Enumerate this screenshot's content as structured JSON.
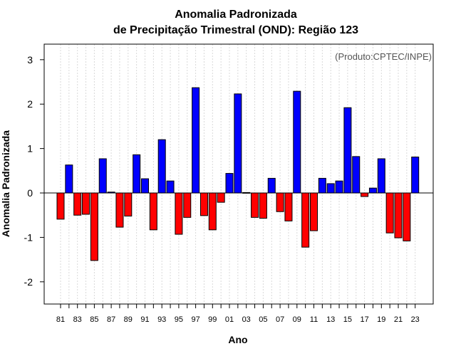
{
  "chart_data": {
    "type": "bar",
    "title_line1": "Anomalia Padronizada",
    "title_line2": "de Precipitação Trimestral (OND): Região 123",
    "xlabel": "Ano",
    "ylabel": "Anomalia Padronizada",
    "annotation": "(Produto:CPTEC/INPE)",
    "ylim": [
      -2.5,
      3.35
    ],
    "yticks": [
      "-2",
      "-1",
      "0",
      "1",
      "2",
      "3"
    ],
    "positive_color": "#0000ff",
    "negative_color": "#ff0000",
    "categories": [
      "81",
      "82",
      "83",
      "84",
      "85",
      "86",
      "87",
      "88",
      "89",
      "90",
      "91",
      "92",
      "93",
      "94",
      "95",
      "96",
      "97",
      "98",
      "99",
      "00",
      "01",
      "02",
      "03",
      "04",
      "05",
      "06",
      "07",
      "08",
      "09",
      "10",
      "11",
      "12",
      "13",
      "14",
      "15",
      "16",
      "17",
      "18",
      "19",
      "20",
      "21",
      "22",
      "23"
    ],
    "xtick_labels": [
      "81",
      "83",
      "85",
      "87",
      "89",
      "91",
      "93",
      "95",
      "97",
      "99",
      "01",
      "03",
      "05",
      "07",
      "09",
      "11",
      "13",
      "15",
      "17",
      "19",
      "21",
      "23"
    ],
    "values": [
      -0.59,
      0.63,
      -0.5,
      -0.48,
      -1.52,
      0.77,
      0.02,
      -0.77,
      -0.52,
      0.86,
      0.32,
      -0.83,
      1.2,
      0.27,
      -0.93,
      -0.55,
      2.37,
      -0.51,
      -0.83,
      -0.21,
      0.44,
      2.23,
      0.01,
      -0.55,
      -0.57,
      0.33,
      -0.42,
      -0.63,
      2.29,
      -1.22,
      -0.85,
      0.33,
      0.21,
      0.27,
      1.92,
      0.82,
      -0.08,
      0.11,
      0.77,
      -0.9,
      -1.01,
      -1.08,
      0.81
    ]
  }
}
